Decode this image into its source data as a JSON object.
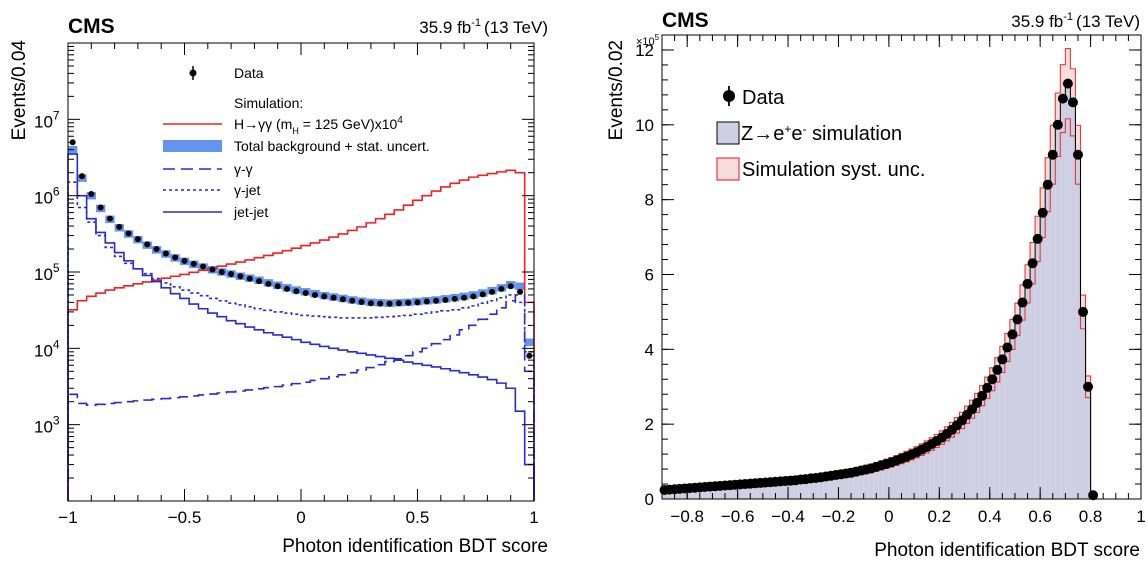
{
  "chart_data": [
    {
      "type": "line",
      "title": "CMS",
      "subtitle_html": "35.9 fb⁻¹ (13 TeV)",
      "lumi": "35.9 fb",
      "lumi_sup": "-1",
      "energy": "(13 TeV)",
      "xlabel": "Photon identification BDT score",
      "ylabel": "Events/0.04",
      "xlim": [
        -1,
        1
      ],
      "ylim": [
        100,
        100000000
      ],
      "yscale": "log",
      "x_ticks": [
        "−1",
        "−0.5",
        "0",
        "0.5",
        "1"
      ],
      "x_tick_values": [
        -1,
        -0.5,
        0,
        0.5,
        1
      ],
      "y_ticks": [
        "10",
        "10",
        "10",
        "10",
        "10"
      ],
      "y_tick_exp": [
        "3",
        "4",
        "5",
        "6",
        "7"
      ],
      "y_tick_values": [
        1000,
        10000,
        100000,
        1000000,
        10000000
      ],
      "legend": {
        "data": "Data",
        "sim_header": "Simulation:",
        "signal": "H→γγ (m",
        "signal_sub": "H",
        "signal_tail": " = 125 GeV)x10",
        "signal_sup": "4",
        "total_bkg": "Total background + stat. uncert.",
        "gg": "γ-γ",
        "gj": "γ-jet",
        "jj": "jet-jet"
      },
      "colors": {
        "signal": "#ee2222",
        "background": "#2a2ad0",
        "band": "#6495ed",
        "data": "#000000"
      },
      "bin_edges": [
        -1.0,
        -0.96,
        -0.92,
        -0.88,
        -0.84,
        -0.8,
        -0.76,
        -0.72,
        -0.68,
        -0.64,
        -0.6,
        -0.56,
        -0.52,
        -0.48,
        -0.44,
        -0.4,
        -0.36,
        -0.32,
        -0.28,
        -0.24,
        -0.2,
        -0.16,
        -0.12,
        -0.08,
        -0.04,
        0.0,
        0.04,
        0.08,
        0.12,
        0.16,
        0.2,
        0.24,
        0.28,
        0.32,
        0.36,
        0.4,
        0.44,
        0.48,
        0.52,
        0.56,
        0.6,
        0.64,
        0.68,
        0.72,
        0.76,
        0.8,
        0.84,
        0.88,
        0.92,
        0.96,
        1.0
      ],
      "series": [
        {
          "name": "Data",
          "kind": "points",
          "values": [
            5000000,
            1800000,
            1050000,
            700000,
            500000,
            390000,
            320000,
            270000,
            230000,
            200000,
            175000,
            155000,
            140000,
            128000,
            118000,
            108000,
            100000,
            94000,
            88000,
            82000,
            76000,
            70000,
            65000,
            60000,
            56000,
            53000,
            50000,
            48000,
            46000,
            44000,
            42000,
            40500,
            39000,
            38500,
            38500,
            39000,
            39500,
            40000,
            41000,
            42000,
            43000,
            44500,
            46000,
            48000,
            51000,
            55000,
            60000,
            65000,
            55000,
            8000
          ]
        },
        {
          "name": "H→γγ (mH = 125 GeV)x10⁴",
          "kind": "step",
          "values": [
            32000,
            42000,
            48000,
            53000,
            58000,
            62000,
            66000,
            70000,
            74000,
            78000,
            83000,
            88000,
            93000,
            99000,
            105000,
            112000,
            119000,
            127000,
            135000,
            144000,
            154000,
            165000,
            177000,
            190000,
            205000,
            222000,
            240000,
            262000,
            287000,
            315000,
            350000,
            390000,
            440000,
            500000,
            570000,
            650000,
            750000,
            870000,
            1000000,
            1150000,
            1300000,
            1450000,
            1600000,
            1750000,
            1850000,
            1950000,
            2050000,
            2150000,
            2000000,
            40000
          ]
        },
        {
          "name": "Total background + stat. uncert.",
          "kind": "band",
          "values": [
            4000000,
            1700000,
            1000000,
            680000,
            490000,
            380000,
            315000,
            265000,
            225000,
            195000,
            172000,
            153000,
            138000,
            126000,
            116000,
            107000,
            100000,
            94000,
            88000,
            83000,
            78000,
            72000,
            67000,
            62000,
            58000,
            55000,
            52000,
            49000,
            47000,
            45000,
            43000,
            41500,
            40000,
            39500,
            39000,
            39500,
            40000,
            41000,
            42000,
            43000,
            44500,
            46000,
            48000,
            50000,
            53000,
            57000,
            62000,
            68000,
            65000,
            12000
          ]
        },
        {
          "name": "γ-γ",
          "kind": "step",
          "dash": "long",
          "values": [
            2500,
            1900,
            1800,
            1850,
            1900,
            1950,
            2000,
            2050,
            2100,
            2150,
            2200,
            2260,
            2320,
            2380,
            2450,
            2520,
            2600,
            2680,
            2760,
            2850,
            2950,
            3050,
            3150,
            3300,
            3450,
            3600,
            3800,
            4000,
            4250,
            4500,
            4800,
            5200,
            5600,
            6100,
            6700,
            7300,
            8000,
            9000,
            10000,
            11500,
            13000,
            15000,
            17500,
            20000,
            24000,
            28000,
            34000,
            42000,
            50000,
            5000
          ]
        },
        {
          "name": "γ-jet",
          "kind": "step",
          "dash": "short",
          "values": [
            1500000,
            700000,
            450000,
            300000,
            210000,
            160000,
            130000,
            110000,
            95000,
            82000,
            72000,
            64000,
            58000,
            53000,
            49000,
            45000,
            42000,
            39000,
            37000,
            35000,
            33000,
            31500,
            30000,
            29000,
            28000,
            27000,
            26500,
            26000,
            25500,
            25000,
            25000,
            25000,
            25000,
            25500,
            26000,
            26500,
            27000,
            28000,
            29000,
            30000,
            31000,
            32000,
            34000,
            36000,
            39000,
            42000,
            46000,
            50000,
            40000,
            9000
          ]
        },
        {
          "name": "jet-jet",
          "kind": "step",
          "dash": "solid",
          "values": [
            3500000,
            1000000,
            500000,
            330000,
            240000,
            180000,
            140000,
            110000,
            90000,
            75000,
            62000,
            52000,
            45000,
            38000,
            33000,
            29000,
            26000,
            23000,
            21000,
            19000,
            17500,
            16000,
            15000,
            14000,
            13000,
            12000,
            11300,
            10600,
            10000,
            9500,
            9000,
            8600,
            8200,
            7800,
            7400,
            7000,
            6600,
            6300,
            6000,
            5700,
            5400,
            5100,
            4800,
            4500,
            4200,
            3900,
            3500,
            3000,
            1500,
            300
          ]
        }
      ]
    },
    {
      "type": "bar",
      "title": "CMS",
      "lumi": "35.9 fb",
      "lumi_sup": "-1",
      "energy": "(13 TeV)",
      "xlabel": "Photon identification BDT score",
      "ylabel": "Events/0.02",
      "y_multiplier": "×10",
      "y_multiplier_sup": "5",
      "xlim": [
        -0.9,
        1.0
      ],
      "ylim": [
        0,
        12.4
      ],
      "x_ticks": [
        "−0.8",
        "−0.6",
        "−0.4",
        "−0.2",
        "0",
        "0.2",
        "0.4",
        "0.6",
        "0.8",
        "1"
      ],
      "x_tick_values": [
        -0.8,
        -0.6,
        -0.4,
        -0.2,
        0,
        0.2,
        0.4,
        0.6,
        0.8,
        1.0
      ],
      "y_ticks": [
        "0",
        "2",
        "4",
        "6",
        "8",
        "10",
        "12"
      ],
      "y_tick_values": [
        0,
        2,
        4,
        6,
        8,
        10,
        12
      ],
      "legend": {
        "data": "Data",
        "sim": "Z→e",
        "sim_sup1": "+",
        "sim_mid": "e",
        "sim_sup2": "-",
        "sim_tail": " simulation",
        "syst": "Simulation syst. unc."
      },
      "colors": {
        "fill": "#cfcfe3",
        "outline": "#000000",
        "syst": "#e23c3c",
        "syst_fill": "#f8dcdc",
        "data": "#000000"
      },
      "data_points": [
        [
          -0.89,
          0.24
        ],
        [
          -0.87,
          0.25
        ],
        [
          -0.85,
          0.26
        ],
        [
          -0.83,
          0.27
        ],
        [
          -0.81,
          0.28
        ],
        [
          -0.79,
          0.29
        ],
        [
          -0.77,
          0.3
        ],
        [
          -0.75,
          0.31
        ],
        [
          -0.73,
          0.32
        ],
        [
          -0.71,
          0.33
        ],
        [
          -0.69,
          0.34
        ],
        [
          -0.67,
          0.35
        ],
        [
          -0.65,
          0.36
        ],
        [
          -0.63,
          0.37
        ],
        [
          -0.61,
          0.38
        ],
        [
          -0.59,
          0.39
        ],
        [
          -0.57,
          0.4
        ],
        [
          -0.55,
          0.41
        ],
        [
          -0.53,
          0.42
        ],
        [
          -0.51,
          0.43
        ],
        [
          -0.49,
          0.44
        ],
        [
          -0.47,
          0.45
        ],
        [
          -0.45,
          0.46
        ],
        [
          -0.43,
          0.47
        ],
        [
          -0.41,
          0.48
        ],
        [
          -0.39,
          0.49
        ],
        [
          -0.37,
          0.5
        ],
        [
          -0.35,
          0.52
        ],
        [
          -0.33,
          0.53
        ],
        [
          -0.31,
          0.55
        ],
        [
          -0.29,
          0.56
        ],
        [
          -0.27,
          0.58
        ],
        [
          -0.25,
          0.6
        ],
        [
          -0.23,
          0.62
        ],
        [
          -0.21,
          0.64
        ],
        [
          -0.19,
          0.66
        ],
        [
          -0.17,
          0.68
        ],
        [
          -0.15,
          0.7
        ],
        [
          -0.13,
          0.73
        ],
        [
          -0.11,
          0.76
        ],
        [
          -0.09,
          0.79
        ],
        [
          -0.07,
          0.82
        ],
        [
          -0.05,
          0.86
        ],
        [
          -0.03,
          0.9
        ],
        [
          -0.01,
          0.94
        ],
        [
          0.01,
          0.98
        ],
        [
          0.03,
          1.03
        ],
        [
          0.05,
          1.08
        ],
        [
          0.07,
          1.13
        ],
        [
          0.09,
          1.19
        ],
        [
          0.11,
          1.25
        ],
        [
          0.13,
          1.32
        ],
        [
          0.15,
          1.39
        ],
        [
          0.17,
          1.47
        ],
        [
          0.19,
          1.55
        ],
        [
          0.21,
          1.64
        ],
        [
          0.23,
          1.74
        ],
        [
          0.25,
          1.85
        ],
        [
          0.27,
          1.97
        ],
        [
          0.29,
          2.1
        ],
        [
          0.31,
          2.25
        ],
        [
          0.33,
          2.4
        ],
        [
          0.35,
          2.57
        ],
        [
          0.37,
          2.76
        ],
        [
          0.39,
          2.97
        ],
        [
          0.41,
          3.2
        ],
        [
          0.43,
          3.45
        ],
        [
          0.45,
          3.73
        ],
        [
          0.47,
          4.05
        ],
        [
          0.49,
          4.4
        ],
        [
          0.51,
          4.8
        ],
        [
          0.53,
          5.25
        ],
        [
          0.55,
          5.75
        ],
        [
          0.57,
          6.3
        ],
        [
          0.59,
          6.95
        ],
        [
          0.61,
          7.65
        ],
        [
          0.63,
          8.4
        ],
        [
          0.65,
          9.2
        ],
        [
          0.67,
          10.0
        ],
        [
          0.69,
          10.7
        ],
        [
          0.71,
          11.1
        ],
        [
          0.73,
          10.6
        ],
        [
          0.75,
          9.2
        ],
        [
          0.77,
          5.0
        ],
        [
          0.79,
          3.0
        ],
        [
          0.81,
          0.1
        ]
      ],
      "sim_bins": {
        "x0": -0.9,
        "width": 0.02
      }
    }
  ]
}
